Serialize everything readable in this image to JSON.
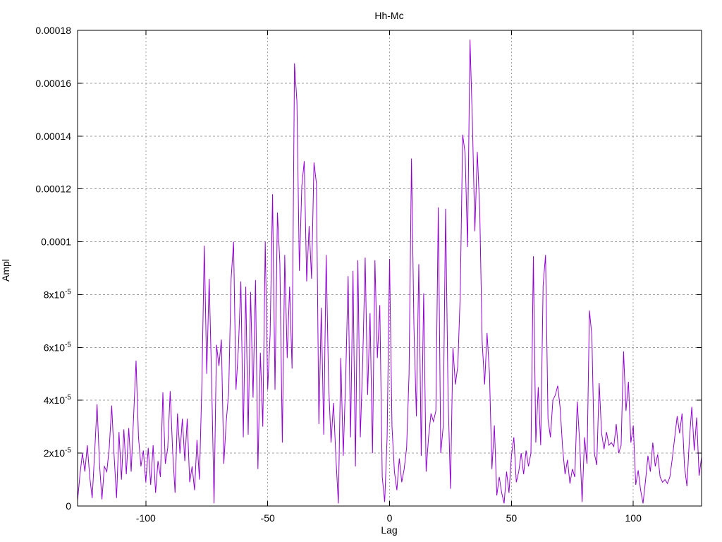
{
  "chart_data": {
    "type": "line",
    "title": "Hh-Mc",
    "xlabel": "Lag",
    "ylabel": "Ampl",
    "legend": false,
    "grid": true,
    "line_color": "#9400d3",
    "grid_color": "#a0a0a0",
    "border_color": "#000000",
    "background_color": "#ffffff",
    "xlim": [
      -128,
      128
    ],
    "ylim": [
      0,
      0.00018
    ],
    "xticks": {
      "values": [
        -100,
        -50,
        0,
        50,
        100
      ],
      "labels": [
        "-100",
        "-50",
        "0",
        "50",
        "100"
      ]
    },
    "yticks": {
      "values": [
        0,
        2e-05,
        4e-05,
        6e-05,
        8e-05,
        0.0001,
        0.00012,
        0.00014,
        0.00016,
        0.00018
      ],
      "labels": [
        "0",
        "2x10^-5",
        "4x10^-5",
        "6x10^-5",
        "8x10^-5",
        "0.0001",
        "0.00012",
        "0.00014",
        "0.00016",
        "0.00018"
      ]
    },
    "x_start": -128,
    "x_step": 1,
    "value_scale": 1e-05,
    "values": [
      0.2,
      1.2,
      2.0,
      1.3,
      2.3,
      1.1,
      0.3,
      2.0,
      3.85,
      1.6,
      0.25,
      1.5,
      1.3,
      2.2,
      3.8,
      1.9,
      0.3,
      2.8,
      1.0,
      2.9,
      1.2,
      2.95,
      1.3,
      3.4,
      5.5,
      2.6,
      1.5,
      2.1,
      0.9,
      2.2,
      0.8,
      2.3,
      0.5,
      1.7,
      1.1,
      4.3,
      1.6,
      2.2,
      4.35,
      2.1,
      0.5,
      3.5,
      2.0,
      3.3,
      1.7,
      3.3,
      0.9,
      1.5,
      0.6,
      2.5,
      1.0,
      4.6,
      9.85,
      5.0,
      8.6,
      4.8,
      0.1,
      6.1,
      5.3,
      6.3,
      1.6,
      3.2,
      4.3,
      8.6,
      10.0,
      4.4,
      6.0,
      8.5,
      2.6,
      8.3,
      2.7,
      8.1,
      4.1,
      8.55,
      1.4,
      5.8,
      3.0,
      10.0,
      4.4,
      6.5,
      11.8,
      4.4,
      11.1,
      9.2,
      2.4,
      9.5,
      5.6,
      8.3,
      5.2,
      16.75,
      15.3,
      8.9,
      12.1,
      13.05,
      8.5,
      10.6,
      8.6,
      13.0,
      12.2,
      3.1,
      7.5,
      2.7,
      9.5,
      4.6,
      2.4,
      3.9,
      1.8,
      0.1,
      5.6,
      1.9,
      4.8,
      8.7,
      2.6,
      8.9,
      1.5,
      9.3,
      2.6,
      5.5,
      9.4,
      4.2,
      7.3,
      2.0,
      9.3,
      5.6,
      7.6,
      1.1,
      0.15,
      2.6,
      9.35,
      3.0,
      1.3,
      0.6,
      1.8,
      0.9,
      1.4,
      2.2,
      5.0,
      13.15,
      6.8,
      3.4,
      9.15,
      1.9,
      8.05,
      1.3,
      2.6,
      3.5,
      3.2,
      3.6,
      11.3,
      2.0,
      3.0,
      11.25,
      4.2,
      0.65,
      6.0,
      4.6,
      5.3,
      8.0,
      14.05,
      13.35,
      9.8,
      17.65,
      14.5,
      10.4,
      13.4,
      11.2,
      6.2,
      4.6,
      6.55,
      5.0,
      1.4,
      3.05,
      0.4,
      1.1,
      0.5,
      0.1,
      1.3,
      0.5,
      1.9,
      2.6,
      0.9,
      1.3,
      2.0,
      1.2,
      2.1,
      1.5,
      2.0,
      9.45,
      2.4,
      4.5,
      2.3,
      8.35,
      9.5,
      3.3,
      2.6,
      4.0,
      4.2,
      4.55,
      3.7,
      2.2,
      1.2,
      1.75,
      0.85,
      1.4,
      1.1,
      3.95,
      2.4,
      0.15,
      2.6,
      1.6,
      7.4,
      6.45,
      2.0,
      1.55,
      4.65,
      2.75,
      2.15,
      2.8,
      2.3,
      2.4,
      2.25,
      3.1,
      2.0,
      2.3,
      5.85,
      3.6,
      4.7,
      2.4,
      3.05,
      0.8,
      1.35,
      0.6,
      0.1,
      0.95,
      1.9,
      1.3,
      2.4,
      1.5,
      1.95,
      1.1,
      0.9,
      1.0,
      0.85,
      1.1,
      1.8,
      2.6,
      3.4,
      2.75,
      3.5,
      1.5,
      0.75,
      2.5,
      3.75,
      2.1,
      3.35,
      1.15,
      1.85
    ]
  }
}
